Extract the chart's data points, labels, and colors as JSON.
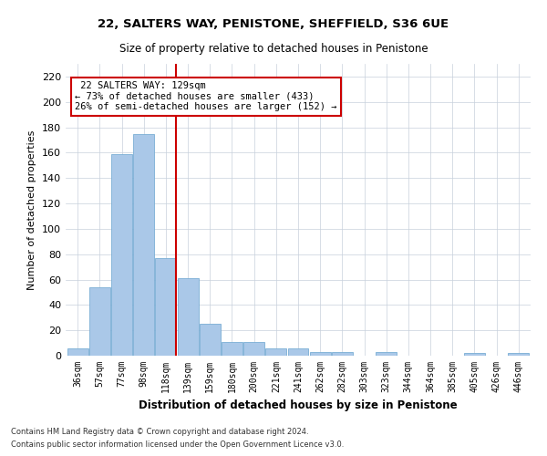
{
  "title": "22, SALTERS WAY, PENISTONE, SHEFFIELD, S36 6UE",
  "subtitle": "Size of property relative to detached houses in Penistone",
  "xlabel": "Distribution of detached houses by size in Penistone",
  "ylabel": "Number of detached properties",
  "bar_color": "#aac8e8",
  "bar_edge_color": "#7aaard4",
  "categories": [
    "36sqm",
    "57sqm",
    "77sqm",
    "98sqm",
    "118sqm",
    "139sqm",
    "159sqm",
    "180sqm",
    "200sqm",
    "221sqm",
    "241sqm",
    "262sqm",
    "282sqm",
    "303sqm",
    "323sqm",
    "344sqm",
    "364sqm",
    "385sqm",
    "405sqm",
    "426sqm",
    "446sqm"
  ],
  "values": [
    6,
    54,
    159,
    175,
    77,
    61,
    25,
    11,
    11,
    6,
    6,
    3,
    3,
    0,
    3,
    0,
    0,
    0,
    2,
    0,
    2
  ],
  "ylim": [
    0,
    230
  ],
  "yticks": [
    0,
    20,
    40,
    60,
    80,
    100,
    120,
    140,
    160,
    180,
    200,
    220
  ],
  "vline_x_index": 4,
  "vline_color": "#cc0000",
  "annotation_line1": "22 SALTERS WAY: 129sqm",
  "annotation_line2": "← 73% of detached houses are smaller (433)",
  "annotation_line3": "26% of semi-detached houses are larger (152) →",
  "footer1": "Contains HM Land Registry data © Crown copyright and database right 2024.",
  "footer2": "Contains public sector information licensed under the Open Government Licence v3.0.",
  "bg_color": "#ffffff",
  "grid_color": "#c8d0dc"
}
